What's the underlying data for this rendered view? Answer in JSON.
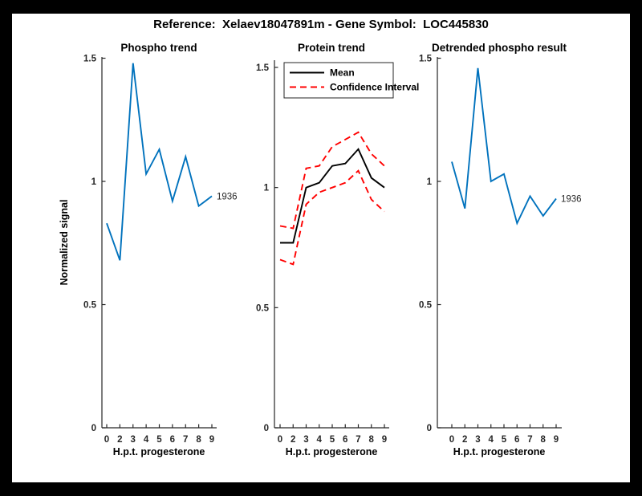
{
  "figure": {
    "title": "Reference:  Xelaev18047891m - Gene Symbol:  LOC445830"
  },
  "colors": {
    "line_blue": "#0072BD",
    "ci_red": "#FF0000",
    "mean_black": "#000000",
    "axis": "#262626",
    "background": "#FFFFFF",
    "frame": "#000000"
  },
  "chart_data": [
    {
      "type": "line",
      "title": "Phospho trend",
      "xlabel": "H.p.t. progesterone",
      "ylabel": "Normalized signal",
      "x_tick_labels": [
        "0",
        "2",
        "3",
        "4",
        "5",
        "6",
        "7",
        "8",
        "9"
      ],
      "y_ticks": [
        0,
        0.5,
        1,
        1.5
      ],
      "y_tick_labels": [
        "0",
        "0.5",
        "1",
        "1.5"
      ],
      "ylim": [
        0,
        1.505
      ],
      "grid": false,
      "legend": null,
      "end_label": "1936",
      "series": [
        {
          "name": "phospho-signal",
          "color": "#0072BD",
          "dash": false,
          "values": [
            0.83,
            0.68,
            1.48,
            1.03,
            1.13,
            0.92,
            1.1,
            0.9,
            0.94
          ]
        }
      ]
    },
    {
      "type": "line",
      "title": "Protein trend",
      "xlabel": "H.p.t. progesterone",
      "ylabel": "",
      "x_tick_labels": [
        "0",
        "2",
        "3",
        "4",
        "5",
        "6",
        "7",
        "8",
        "9"
      ],
      "y_ticks": [
        0,
        0.5,
        1,
        1.5
      ],
      "y_tick_labels": [
        "0",
        "0.5",
        "1",
        "1.5"
      ],
      "ylim": [
        0,
        1.53
      ],
      "grid": false,
      "end_label": null,
      "legend": {
        "position": "northwest",
        "entries": [
          {
            "label": "Mean",
            "color": "#000000",
            "dash": false
          },
          {
            "label": "Confidence Interval",
            "color": "#FF0000",
            "dash": true
          }
        ]
      },
      "series": [
        {
          "name": "mean",
          "color": "#000000",
          "dash": false,
          "values": [
            0.77,
            0.77,
            1.0,
            1.02,
            1.09,
            1.1,
            1.16,
            1.04,
            1.0
          ]
        },
        {
          "name": "confidence-interval-upper",
          "color": "#FF0000",
          "dash": true,
          "values": [
            0.84,
            0.83,
            1.08,
            1.09,
            1.17,
            1.2,
            1.23,
            1.14,
            1.09
          ]
        },
        {
          "name": "confidence-interval-lower",
          "color": "#FF0000",
          "dash": true,
          "values": [
            0.7,
            0.68,
            0.93,
            0.98,
            1.0,
            1.02,
            1.07,
            0.95,
            0.9
          ]
        }
      ]
    },
    {
      "type": "line",
      "title": "Detrended phospho result",
      "xlabel": "H.p.t. progesterone",
      "ylabel": "",
      "x_tick_labels": [
        "0",
        "2",
        "3",
        "4",
        "5",
        "6",
        "7",
        "8",
        "9"
      ],
      "y_ticks": [
        0,
        0.5,
        1,
        1.5
      ],
      "y_tick_labels": [
        "0",
        "0.5",
        "1",
        "1.5"
      ],
      "ylim": [
        0,
        1.505
      ],
      "grid": false,
      "legend": null,
      "end_label": "1936",
      "series": [
        {
          "name": "detrended-phospho-signal",
          "color": "#0072BD",
          "dash": false,
          "values": [
            1.08,
            0.89,
            1.46,
            1.0,
            1.03,
            0.83,
            0.94,
            0.86,
            0.93
          ]
        }
      ]
    }
  ]
}
